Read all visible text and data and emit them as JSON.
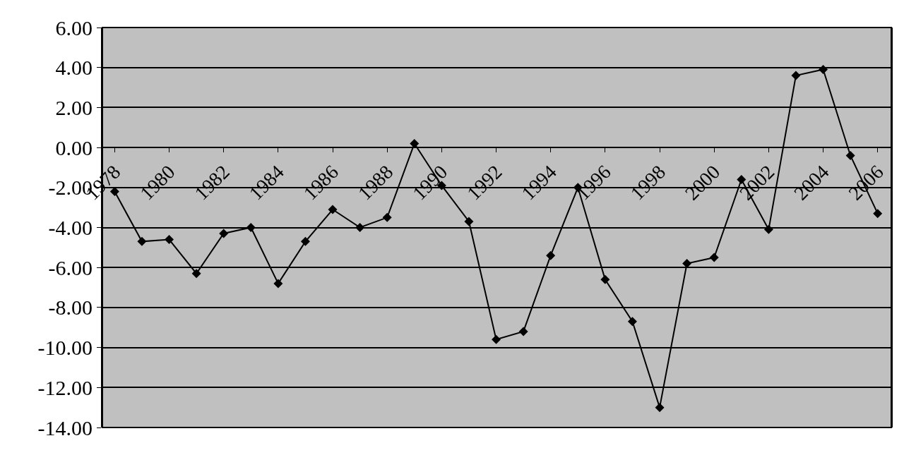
{
  "chart_data": {
    "type": "line",
    "categories": [
      "1978",
      null,
      "1980",
      null,
      "1982",
      null,
      "1984",
      null,
      "1986",
      null,
      "1988",
      null,
      "1990",
      null,
      "1992",
      null,
      "1994",
      null,
      "1996",
      null,
      "1998",
      null,
      "2000",
      null,
      "2002",
      null,
      "2004",
      null,
      "2006"
    ],
    "series": [
      {
        "color": "#000000",
        "values": [
          -2.2,
          -4.7,
          -4.6,
          -6.3,
          -4.3,
          -4.0,
          -6.8,
          -4.7,
          -3.1,
          -4.0,
          -3.5,
          0.2,
          -1.9,
          -3.7,
          -9.6,
          -9.2,
          -5.4,
          -2.0,
          -6.6,
          -8.7,
          -13.0,
          -5.8,
          -5.5,
          -1.6,
          -4.1,
          3.6,
          3.9,
          -0.4,
          -3.3
        ]
      }
    ],
    "ylim": [
      -14,
      6
    ],
    "yticks": [
      {
        "value": -14,
        "label": "-14.00"
      },
      {
        "value": -12,
        "label": "-12.00"
      },
      {
        "value": -10,
        "label": "-10.00"
      },
      {
        "value": -8,
        "label": "-8.00"
      },
      {
        "value": -6,
        "label": "-6.00"
      },
      {
        "value": -4,
        "label": "-4.00"
      },
      {
        "value": -2,
        "label": "-2.00"
      },
      {
        "value": 0,
        "label": "0.00"
      },
      {
        "value": 2,
        "label": "2.00"
      },
      {
        "value": 4,
        "label": "4.00"
      },
      {
        "value": 6,
        "label": "6.00"
      }
    ],
    "grid": "y",
    "legend": false,
    "marker": "diamond",
    "line_style": "solid"
  }
}
